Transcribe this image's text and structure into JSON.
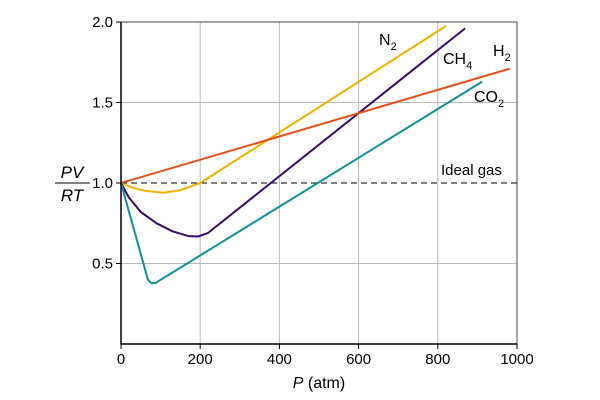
{
  "chart_data": {
    "type": "line",
    "title": "",
    "xlabel_italic": "P",
    "xlabel_rest": " (atm)",
    "ylabel_num": "PV",
    "ylabel_den": "RT",
    "xlim": [
      0,
      1000
    ],
    "ylim": [
      0,
      2.0
    ],
    "xticks": [
      0,
      200,
      400,
      600,
      800,
      1000
    ],
    "xtick_labels": [
      "0",
      "200",
      "400",
      "600",
      "800",
      "1000"
    ],
    "yticks": [
      0.5,
      1.0,
      1.5,
      2.0
    ],
    "ytick_labels": [
      "0.5",
      "1.0",
      "1.5",
      "2.0"
    ],
    "grid": true,
    "reference_line": {
      "label": "Ideal gas",
      "y": 1.0,
      "style": "dashed"
    },
    "series": [
      {
        "name": "N2",
        "label_main": "N",
        "label_sub": "2",
        "color": "#f0b400",
        "points": [
          [
            0,
            1.0
          ],
          [
            30,
            0.97
          ],
          [
            60,
            0.952
          ],
          [
            106,
            0.94
          ],
          [
            150,
            0.955
          ],
          [
            200,
            1.0
          ],
          [
            821,
            1.975
          ]
        ]
      },
      {
        "name": "CH4",
        "label_main": "CH",
        "label_sub": "4",
        "color": "#3c0a6e",
        "points": [
          [
            0,
            1.0
          ],
          [
            20,
            0.91
          ],
          [
            50,
            0.82
          ],
          [
            90,
            0.75
          ],
          [
            130,
            0.7
          ],
          [
            170,
            0.67
          ],
          [
            195,
            0.668
          ],
          [
            220,
            0.69
          ],
          [
            869,
            1.96
          ]
        ]
      },
      {
        "name": "H2",
        "label_main": "H",
        "label_sub": "2",
        "color": "#e8501a",
        "points": [
          [
            0,
            1.0
          ],
          [
            982,
            1.71
          ]
        ]
      },
      {
        "name": "CO2",
        "label_main": "CO",
        "label_sub": "2",
        "color": "#10909e",
        "points": [
          [
            0,
            1.0
          ],
          [
            68,
            0.4
          ],
          [
            77,
            0.377
          ],
          [
            88,
            0.38
          ],
          [
            912,
            1.63
          ]
        ]
      }
    ]
  }
}
